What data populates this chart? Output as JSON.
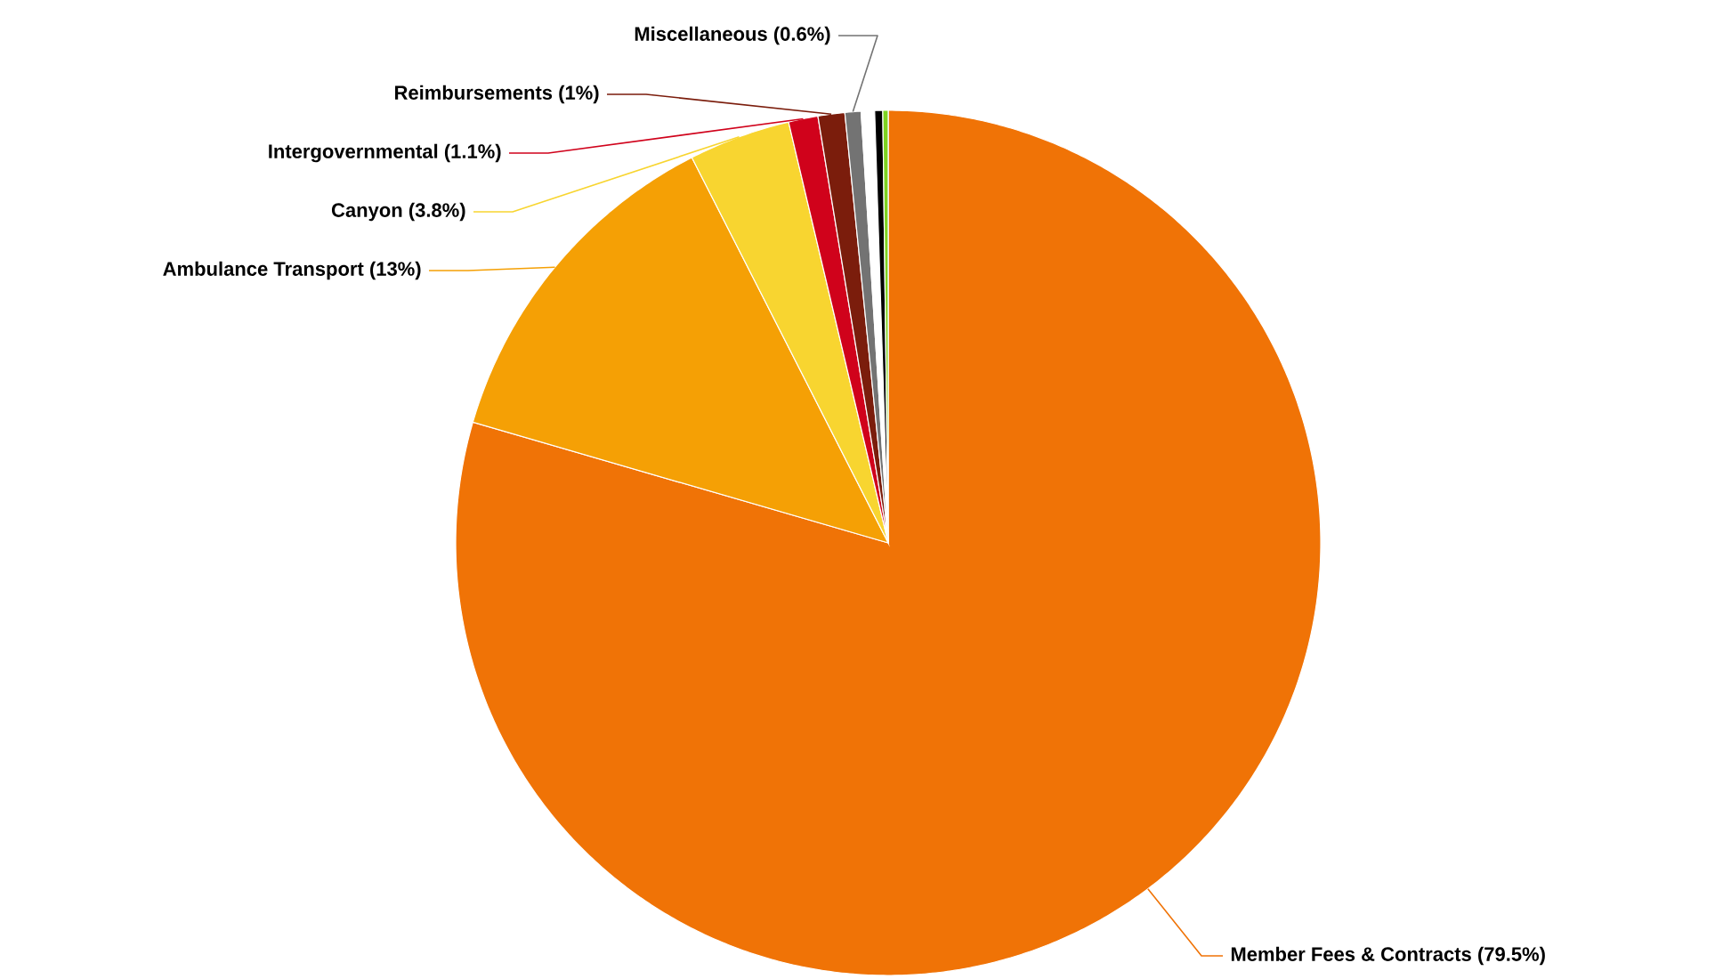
{
  "chart_data": {
    "type": "pie",
    "categories": [
      "Member Fees & Contracts",
      "Ambulance Transport",
      "Canyon",
      "Intergovernmental",
      "Reimbursements",
      "Miscellaneous",
      null,
      null,
      null
    ],
    "values": [
      79.5,
      13,
      3.8,
      1.1,
      1,
      0.6,
      0.5,
      0.3,
      0.2
    ],
    "value_labels": [
      "(79.5%)",
      "(13%)",
      "(3.8%)",
      "(1.1%)",
      "(1%)",
      "(0.6%)",
      null,
      null,
      null
    ],
    "colors": [
      "#f07306",
      "#f5a005",
      "#f8d530",
      "#d0021b",
      "#7b1d0c",
      "#737373",
      "#ffffff",
      "#000000",
      "#7ed321"
    ]
  }
}
